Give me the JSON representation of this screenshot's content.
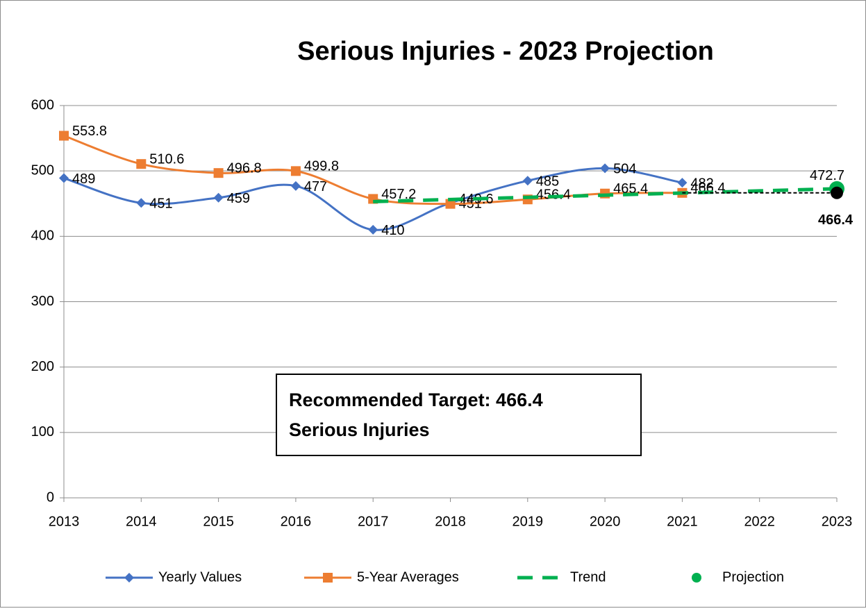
{
  "chart_data": {
    "type": "line",
    "title": "Serious Injuries - 2023 Projection",
    "x": [
      2013,
      2014,
      2015,
      2016,
      2017,
      2018,
      2019,
      2020,
      2021,
      2022,
      2023
    ],
    "xlim": [
      2013,
      2023
    ],
    "xticks": [
      2013,
      2014,
      2015,
      2016,
      2017,
      2018,
      2019,
      2020,
      2021,
      2022,
      2023
    ],
    "ylim": [
      0,
      600
    ],
    "yticks": [
      0,
      100,
      200,
      300,
      400,
      500,
      600
    ],
    "grid": true,
    "legend": "bottom",
    "series": [
      {
        "name": "Yearly Values",
        "color": "#4472c4",
        "marker": "diamond",
        "smooth": true,
        "labels": true,
        "values": [
          489,
          451,
          459,
          477,
          410,
          451,
          485,
          504,
          482,
          null,
          null
        ]
      },
      {
        "name": "5-Year Averages",
        "color": "#ed7d31",
        "marker": "square",
        "smooth": true,
        "labels": true,
        "values": [
          553.8,
          510.6,
          496.8,
          499.8,
          457.2,
          449.6,
          456.4,
          465.4,
          466.4,
          null,
          null
        ]
      },
      {
        "name": "Trend",
        "color": "#00b050",
        "marker": "none",
        "dashed": true,
        "smooth": false,
        "labels": false,
        "values": [
          null,
          null,
          null,
          null,
          453,
          456.3,
          459.6,
          462.9,
          466.2,
          469.5,
          472.7
        ]
      },
      {
        "name": "Projection",
        "color": "#00b050",
        "marker": "circle",
        "smooth": false,
        "labels": true,
        "values": [
          null,
          null,
          null,
          null,
          null,
          null,
          null,
          null,
          null,
          null,
          472.7
        ]
      }
    ],
    "target": {
      "x": [
        2021,
        2023
      ],
      "value": 466.4,
      "color": "#000000"
    },
    "annotation": [
      "Recommended Target:  466.4",
      "Serious Injuries"
    ]
  }
}
